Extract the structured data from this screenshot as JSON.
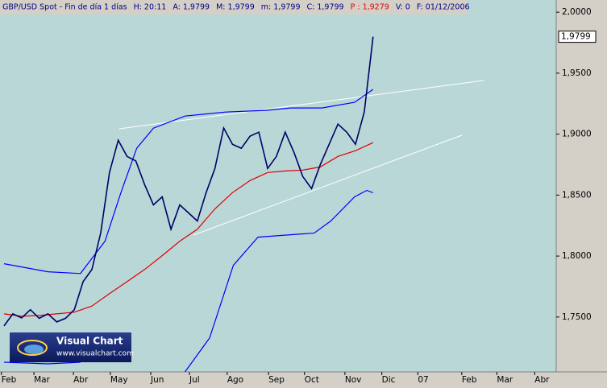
{
  "chart_data": {
    "type": "line",
    "title": "GBP/USD Spot - Fin de día 1 días",
    "info": [
      {
        "text": "H: 20:11",
        "color": "#000080"
      },
      {
        "text": "A: 1,9799",
        "color": "#000080"
      },
      {
        "text": "M: 1,9799",
        "color": "#000080"
      },
      {
        "text": "m: 1,9799",
        "color": "#000080"
      },
      {
        "text": "C: 1,9799",
        "color": "#000080"
      },
      {
        "text": "P : 1,9279",
        "color": "#e00000"
      },
      {
        "text": "V: 0",
        "color": "#000080"
      },
      {
        "text": "F: 01/12/2006",
        "color": "#000080"
      }
    ],
    "last_label": "1,9799",
    "watermark": {
      "title": "Visual Chart",
      "url": "www.visualchart.com"
    },
    "xlim": [
      -0.46,
      62.85
    ],
    "xticks": [
      {
        "value": -0.3,
        "label": "Feb"
      },
      {
        "value": 3.4,
        "label": "Mar"
      },
      {
        "value": 7.9,
        "label": "Abr"
      },
      {
        "value": 12.1,
        "label": "May"
      },
      {
        "value": 16.7,
        "label": "Jun"
      },
      {
        "value": 21.1,
        "label": "Jul"
      },
      {
        "value": 25.4,
        "label": "Ago"
      },
      {
        "value": 30.1,
        "label": "Sep"
      },
      {
        "value": 34.2,
        "label": "Oct"
      },
      {
        "value": 38.8,
        "label": "Nov"
      },
      {
        "value": 43.0,
        "label": "Dic"
      },
      {
        "value": 47.1,
        "label": "07"
      },
      {
        "value": 52.1,
        "label": "Feb"
      },
      {
        "value": 56.1,
        "label": "Mar"
      },
      {
        "value": 60.4,
        "label": "Abr"
      }
    ],
    "ylim": [
      1.705,
      2.01
    ],
    "yticks": [
      {
        "value": 1.75,
        "label": "1,7500"
      },
      {
        "value": 1.8,
        "label": "1,8000"
      },
      {
        "value": 1.85,
        "label": "1,8500"
      },
      {
        "value": 1.9,
        "label": "1,9000"
      },
      {
        "value": 1.95,
        "label": "1,9500"
      },
      {
        "value": 2.0,
        "label": "2,0000"
      }
    ],
    "series": [
      {
        "color": "#0000ff",
        "x": [
          0,
          5.0,
          8.7,
          11.5,
          13.3,
          15.1,
          17.0,
          20.6,
          25.2,
          29.8,
          32.6,
          36.2,
          39.9,
          42.0
        ],
        "values": [
          1.7937,
          1.7871,
          1.7857,
          1.8122,
          1.852,
          1.8884,
          1.9049,
          1.9148,
          1.9181,
          1.9195,
          1.9215,
          1.9215,
          1.9261,
          1.9367
        ]
      },
      {
        "color": "#0000ff",
        "x": [
          0,
          5.0,
          8.7,
          14,
          20.6,
          23.4,
          26.1,
          28.9,
          32.6,
          35.3,
          37.2,
          39.9,
          41.3,
          42.0
        ],
        "values": [
          1.7129,
          1.7116,
          1.7129,
          null,
          1.705,
          1.7328,
          1.7924,
          1.8155,
          1.8175,
          1.8188,
          1.8288,
          1.8486,
          1.8539,
          1.8519
        ]
      },
      {
        "color": "#e00000",
        "x": [
          0,
          2,
          4,
          6,
          8,
          10,
          12,
          14,
          16,
          18,
          20,
          22,
          24,
          26,
          28,
          30,
          32,
          34,
          36,
          38,
          40,
          42
        ],
        "values": [
          1.7526,
          1.7506,
          1.7513,
          1.7526,
          1.754,
          1.759,
          1.7692,
          1.779,
          1.789,
          1.8003,
          1.8122,
          1.822,
          1.8387,
          1.852,
          1.8619,
          1.8685,
          1.8698,
          1.8705,
          1.8731,
          1.8817,
          1.8864,
          1.893
        ]
      },
      {
        "color": "#000066",
        "x": [
          0,
          1,
          2,
          3,
          4,
          5,
          6,
          7,
          8,
          9,
          10,
          11,
          12,
          13,
          14,
          15,
          16,
          17,
          18,
          19,
          20,
          21,
          22,
          23,
          24,
          25,
          26,
          27,
          28,
          29,
          30,
          31,
          32,
          33,
          34,
          35,
          36,
          37,
          38,
          39,
          40,
          41,
          42
        ],
        "values": [
          1.7427,
          1.7526,
          1.7493,
          1.756,
          1.749,
          1.7526,
          1.746,
          1.749,
          1.756,
          1.779,
          1.789,
          1.8189,
          1.8685,
          1.895,
          1.8817,
          1.878,
          1.8586,
          1.842,
          1.8486,
          1.822,
          1.842,
          1.8354,
          1.8288,
          1.852,
          1.8718,
          1.905,
          1.8917,
          1.8884,
          1.8983,
          1.9016,
          1.8718,
          1.8817,
          1.9016,
          1.885,
          1.8652,
          1.8553,
          1.8751,
          1.8917,
          1.9082,
          1.9016,
          1.8917,
          1.9182,
          1.9799
        ]
      }
    ]
  }
}
